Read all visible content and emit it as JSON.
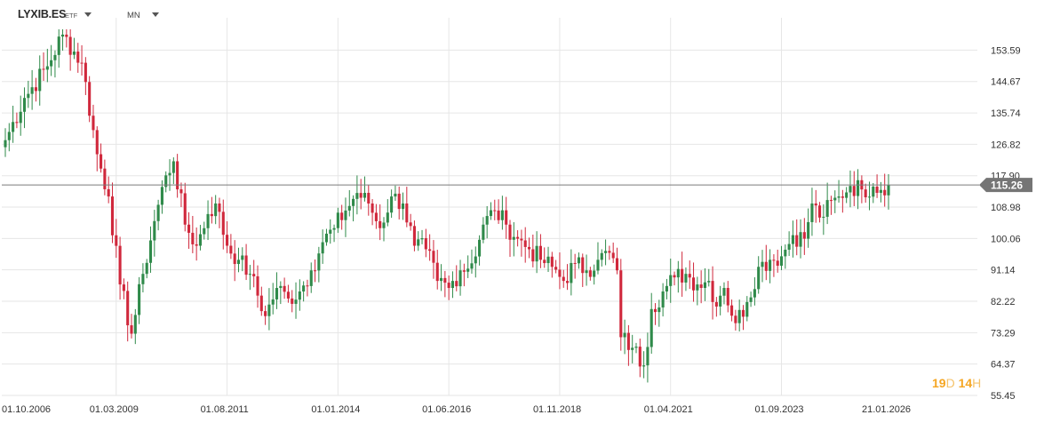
{
  "header": {
    "symbol": "LYXIB.ES",
    "asset_type": "ETF",
    "timeframe": "MN"
  },
  "countdown": {
    "days": "19",
    "days_unit": "D",
    "hours": "14",
    "hours_unit": "H"
  },
  "colors": {
    "up": "#2f8a4a",
    "down": "#d0283c",
    "grid": "#e6e6e6",
    "price_line": "#7a7a7a",
    "label_bg": "#757575"
  },
  "chart_data": {
    "type": "candlestick",
    "title": "",
    "xlabel": "",
    "ylabel": "",
    "ylim": [
      55.45,
      159.5
    ],
    "y_ticks": [
      "153.59",
      "144.67",
      "135.74",
      "126.82",
      "117.90",
      "108.98",
      "100.06",
      "91.14",
      "82.22",
      "73.29",
      "64.37",
      "55.45"
    ],
    "x_ticks": [
      "01.10.2006",
      "01.03.2009",
      "01.08.2011",
      "01.01.2014",
      "01.06.2016",
      "01.11.2018",
      "01.04.2021",
      "01.09.2023",
      "21.01.2026"
    ],
    "x_range": [
      "2006-10",
      "2026-01"
    ],
    "current_price": 115.26,
    "current_price_label": "115.26",
    "grid": true,
    "anchors": [
      [
        "2006-10",
        128
      ],
      [
        "2007-03",
        140
      ],
      [
        "2007-09",
        149
      ],
      [
        "2008-01",
        158
      ],
      [
        "2008-06",
        150
      ],
      [
        "2008-10",
        124
      ],
      [
        "2009-01",
        112
      ],
      [
        "2009-04",
        87
      ],
      [
        "2009-07",
        73
      ],
      [
        "2009-10",
        90
      ],
      [
        "2010-01",
        105
      ],
      [
        "2010-04",
        118
      ],
      [
        "2010-06",
        122
      ],
      [
        "2010-09",
        104
      ],
      [
        "2010-12",
        98
      ],
      [
        "2011-03",
        107
      ],
      [
        "2011-05",
        110
      ],
      [
        "2011-08",
        98
      ],
      [
        "2011-11",
        94
      ],
      [
        "2012-02",
        90
      ],
      [
        "2012-06",
        78
      ],
      [
        "2012-09",
        86
      ],
      [
        "2012-12",
        83
      ],
      [
        "2013-03",
        85
      ],
      [
        "2013-06",
        91
      ],
      [
        "2013-09",
        99
      ],
      [
        "2013-12",
        103
      ],
      [
        "2014-03",
        108
      ],
      [
        "2014-06",
        113
      ],
      [
        "2014-09",
        110
      ],
      [
        "2014-12",
        103
      ],
      [
        "2015-03",
        112
      ],
      [
        "2015-06",
        110
      ],
      [
        "2015-09",
        98
      ],
      [
        "2015-12",
        97
      ],
      [
        "2016-03",
        88
      ],
      [
        "2016-06",
        86
      ],
      [
        "2016-09",
        91
      ],
      [
        "2016-12",
        93
      ],
      [
        "2017-03",
        104
      ],
      [
        "2017-06",
        108
      ],
      [
        "2017-09",
        104
      ],
      [
        "2017-12",
        100
      ],
      [
        "2018-03",
        97
      ],
      [
        "2018-06",
        94
      ],
      [
        "2018-09",
        92
      ],
      [
        "2018-12",
        88
      ],
      [
        "2019-03",
        93
      ],
      [
        "2019-06",
        91
      ],
      [
        "2019-09",
        94
      ],
      [
        "2019-12",
        96
      ],
      [
        "2020-02",
        91
      ],
      [
        "2020-03",
        72
      ],
      [
        "2020-06",
        69
      ],
      [
        "2020-09",
        64
      ],
      [
        "2020-11",
        80
      ],
      [
        "2021-02",
        85
      ],
      [
        "2021-05",
        89
      ],
      [
        "2021-08",
        90
      ],
      [
        "2021-11",
        87
      ],
      [
        "2022-02",
        88
      ],
      [
        "2022-03",
        82
      ],
      [
        "2022-06",
        86
      ],
      [
        "2022-09",
        76
      ],
      [
        "2022-12",
        82
      ],
      [
        "2023-03",
        92
      ],
      [
        "2023-06",
        94
      ],
      [
        "2023-09",
        95
      ],
      [
        "2023-12",
        101
      ],
      [
        "2024-03",
        100
      ],
      [
        "2024-05",
        110
      ],
      [
        "2024-07",
        106
      ],
      [
        "2024-12",
        112
      ],
      [
        "2025-03",
        115
      ],
      [
        "2025-06",
        114
      ],
      [
        "2025-09",
        114.8
      ],
      [
        "2026-01",
        115.26
      ]
    ]
  }
}
